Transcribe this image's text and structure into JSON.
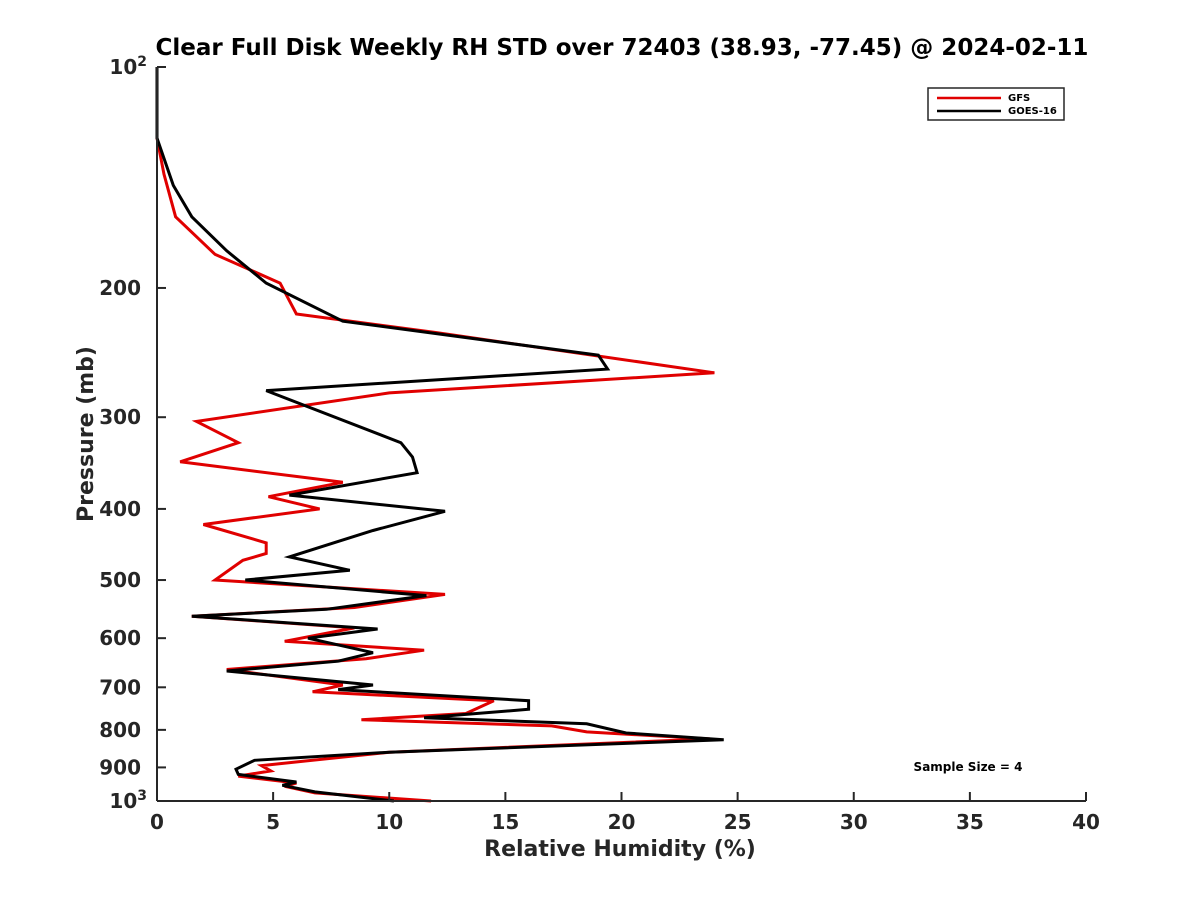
{
  "chart_data": {
    "type": "line",
    "title": "Clear Full Disk Weekly RH STD over 72403 (38.93, -77.45) @ 2024-02-11",
    "xlabel": "Relative Humidity (%)",
    "ylabel": "Pressure (mb)",
    "xlim": [
      0,
      40
    ],
    "ylim": [
      100,
      1000
    ],
    "y_scale": "log",
    "y_reversed": true,
    "grid": false,
    "legend_position": "top-right",
    "x_ticks": [
      "0",
      "5",
      "10",
      "15",
      "20",
      "25",
      "30",
      "35",
      "40"
    ],
    "y_ticks": [
      {
        "value": 100,
        "base": "10",
        "exp": "2"
      },
      {
        "value": 200,
        "label": "200"
      },
      {
        "value": 300,
        "label": "300"
      },
      {
        "value": 400,
        "label": "400"
      },
      {
        "value": 500,
        "label": "500"
      },
      {
        "value": 600,
        "label": "600"
      },
      {
        "value": 700,
        "label": "700"
      },
      {
        "value": 800,
        "label": "800"
      },
      {
        "value": 900,
        "label": "900"
      },
      {
        "value": 1000,
        "base": "10",
        "exp": "3"
      }
    ],
    "annotation": "Sample Size = 4",
    "series": [
      {
        "name": "GFS",
        "color": "#e00000",
        "points": [
          [
            0,
            100
          ],
          [
            0,
            125
          ],
          [
            0.3,
            140
          ],
          [
            0.8,
            160
          ],
          [
            2.5,
            180
          ],
          [
            5.3,
            197
          ],
          [
            6.0,
            217
          ],
          [
            12,
            230
          ],
          [
            24,
            261
          ],
          [
            10,
            278
          ],
          [
            1.7,
            304
          ],
          [
            3.5,
            325
          ],
          [
            1.0,
            345
          ],
          [
            8.0,
            368
          ],
          [
            4.8,
            385
          ],
          [
            7.0,
            400
          ],
          [
            2.0,
            420
          ],
          [
            4.7,
            445
          ],
          [
            4.7,
            460
          ],
          [
            3.7,
            470
          ],
          [
            2.5,
            500
          ],
          [
            12.4,
            523
          ],
          [
            8.5,
            545
          ],
          [
            1.5,
            560
          ],
          [
            8.5,
            581
          ],
          [
            5.5,
            606
          ],
          [
            11.5,
            623
          ],
          [
            9.0,
            640
          ],
          [
            3.0,
            662
          ],
          [
            8.0,
            695
          ],
          [
            6.7,
            710
          ],
          [
            14.5,
            730
          ],
          [
            13.3,
            760
          ],
          [
            8.8,
            775
          ],
          [
            17,
            790
          ],
          [
            18.5,
            805
          ],
          [
            23.8,
            823
          ],
          [
            10,
            858
          ],
          [
            4.5,
            895
          ],
          [
            4.9,
            910
          ],
          [
            3.5,
            925
          ],
          [
            6.0,
            945
          ],
          [
            5.5,
            955
          ],
          [
            6.8,
            975
          ],
          [
            11.8,
            1000
          ]
        ]
      },
      {
        "name": "GOES-16",
        "color": "#000000",
        "points": [
          [
            0,
            100
          ],
          [
            0,
            125
          ],
          [
            0.7,
            145
          ],
          [
            1.5,
            160
          ],
          [
            3.0,
            178
          ],
          [
            4.7,
            197
          ],
          [
            8.0,
            222
          ],
          [
            19,
            247
          ],
          [
            19.4,
            258
          ],
          [
            4.7,
            276
          ],
          [
            10.5,
            325
          ],
          [
            11.0,
            340
          ],
          [
            11.2,
            357
          ],
          [
            5.7,
            383
          ],
          [
            12.4,
            403
          ],
          [
            9.3,
            428
          ],
          [
            7.7,
            444
          ],
          [
            5.7,
            465
          ],
          [
            8.3,
            485
          ],
          [
            3.8,
            500
          ],
          [
            11.6,
            525
          ],
          [
            7.3,
            548
          ],
          [
            1.5,
            560
          ],
          [
            9.5,
            583
          ],
          [
            6.5,
            600
          ],
          [
            9.3,
            628
          ],
          [
            7.8,
            645
          ],
          [
            3.0,
            665
          ],
          [
            9.3,
            695
          ],
          [
            7.8,
            705
          ],
          [
            16.0,
            730
          ],
          [
            16.0,
            750
          ],
          [
            11.5,
            770
          ],
          [
            18.5,
            785
          ],
          [
            20.2,
            808
          ],
          [
            24.4,
            825
          ],
          [
            10,
            858
          ],
          [
            4.2,
            880
          ],
          [
            3.4,
            905
          ],
          [
            3.5,
            920
          ],
          [
            6.0,
            942
          ],
          [
            5.4,
            952
          ],
          [
            6.8,
            972
          ],
          [
            10.2,
            1000
          ]
        ]
      }
    ]
  }
}
